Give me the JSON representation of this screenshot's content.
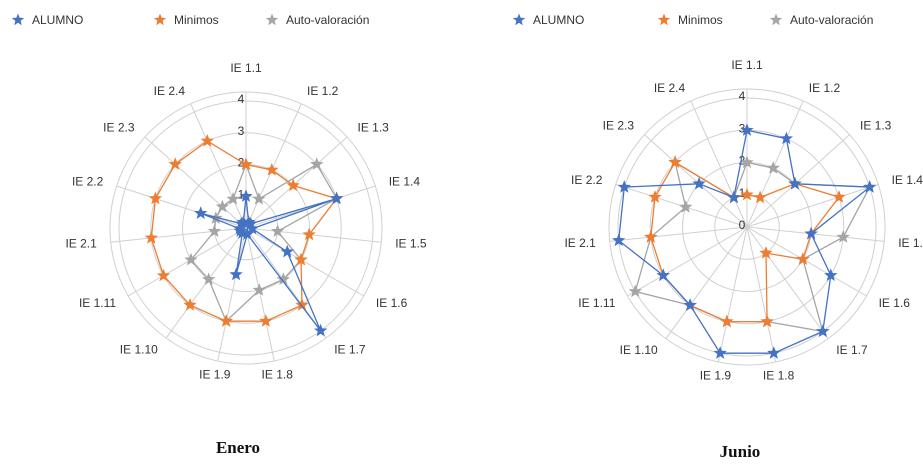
{
  "chart_data": [
    {
      "type": "radar",
      "caption": "Enero",
      "categories": [
        "IE 1.1",
        "IE 1.2",
        "IE 1.3",
        "IE 1.4",
        "IE 1.5",
        "IE 1.6",
        "IE 1.7",
        "IE 1.8",
        "IE 1.9",
        "IE 1.10",
        "IE 1.11",
        "IE 2.1",
        "IE 2.2",
        "IE 2.3",
        "IE 2.4"
      ],
      "rlim": [
        0,
        4
      ],
      "ticks": [
        "0",
        "1",
        "2",
        "3",
        "4"
      ],
      "legend_position": "top",
      "series": [
        {
          "name": "ALUMNO",
          "color": "#4472c4",
          "values": [
            1.0,
            0.2,
            0.2,
            3.0,
            0.2,
            1.5,
            4.0,
            0.2,
            1.5,
            0.2,
            0.2,
            0.2,
            1.5,
            0.2,
            0.2
          ]
        },
        {
          "name": "Minimos",
          "color": "#ed7d31",
          "values": [
            2.0,
            2.0,
            2.0,
            3.0,
            2.0,
            2.0,
            3.0,
            3.0,
            3.0,
            3.0,
            3.0,
            3.0,
            3.0,
            3.0,
            3.0
          ]
        },
        {
          "name": "Auto-valoración",
          "color": "#a5a5a5",
          "values": [
            2.0,
            1.0,
            3.0,
            3.0,
            1.0,
            2.0,
            2.0,
            2.0,
            3.0,
            2.0,
            2.0,
            1.0,
            1.0,
            1.0,
            1.0
          ]
        }
      ]
    },
    {
      "type": "radar",
      "caption": "Junio",
      "categories": [
        "IE 1.1",
        "IE 1.2",
        "IE 1.3",
        "IE 1.4",
        "IE 1.5",
        "IE 1.6",
        "IE 1.7",
        "IE 1.8",
        "IE 1.9",
        "IE 1.10",
        "IE 1.11",
        "IE 2.1",
        "IE 2.2",
        "IE 2.3",
        "IE 2.4"
      ],
      "rlim": [
        0,
        4
      ],
      "ticks": [
        "0",
        "1",
        "2",
        "3",
        "4"
      ],
      "legend_position": "top",
      "series": [
        {
          "name": "ALUMNO",
          "color": "#4472c4",
          "values": [
            3.0,
            3.0,
            2.0,
            4.0,
            2.0,
            3.0,
            4.0,
            4.0,
            4.0,
            3.0,
            3.0,
            4.0,
            4.0,
            2.0,
            1.0
          ]
        },
        {
          "name": "Minimos",
          "color": "#ed7d31",
          "values": [
            1.0,
            1.0,
            2.0,
            3.0,
            2.0,
            2.0,
            1.0,
            3.0,
            3.0,
            3.0,
            3.0,
            3.0,
            3.0,
            3.0,
            1.0
          ]
        },
        {
          "name": "Auto-valoración",
          "color": "#a5a5a5",
          "values": [
            2.0,
            2.0,
            2.0,
            4.0,
            3.0,
            2.0,
            4.0,
            3.0,
            3.0,
            3.0,
            4.0,
            3.0,
            2.0,
            3.0,
            1.0
          ]
        }
      ]
    }
  ]
}
